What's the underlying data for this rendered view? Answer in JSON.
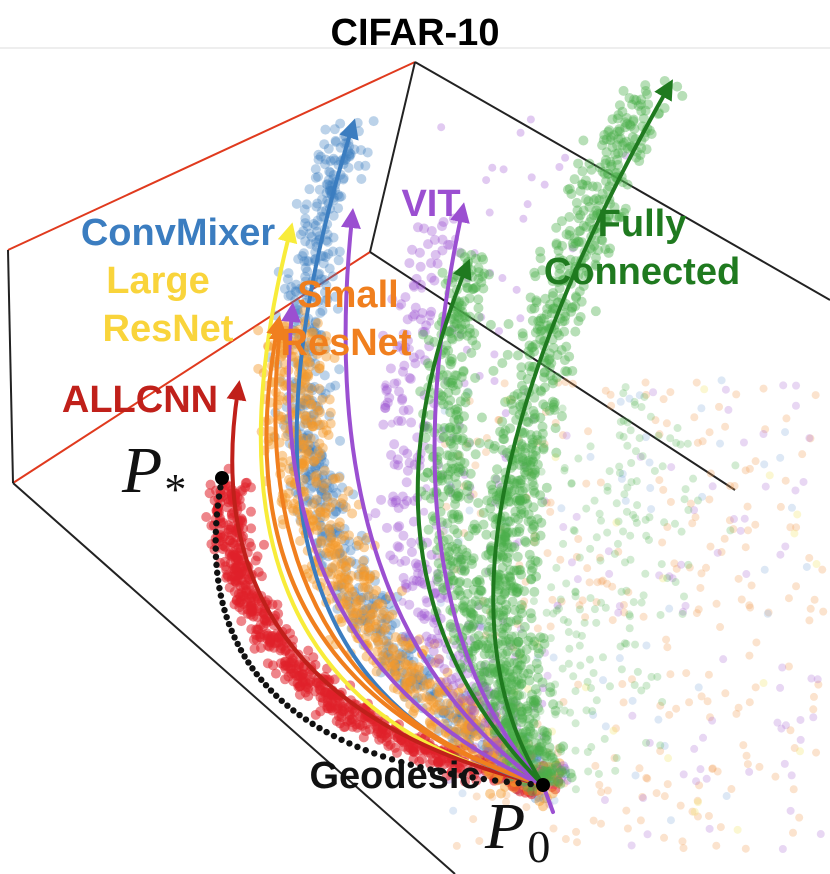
{
  "title": "CIFAR-10",
  "labels": {
    "convmixer": "ConvMixer",
    "large_resnet": [
      "Large",
      "ResNet"
    ],
    "small_resnet": [
      "Small",
      "ResNet"
    ],
    "allcnn": "ALLCNN",
    "vit": "VIT",
    "fully_connected": [
      "Fully",
      "Connected"
    ],
    "geodesic": "Geodesic"
  },
  "points": {
    "p_star": {
      "base": "P",
      "sub": "*"
    },
    "p_zero": {
      "base": "P",
      "sub": "0"
    }
  }
}
